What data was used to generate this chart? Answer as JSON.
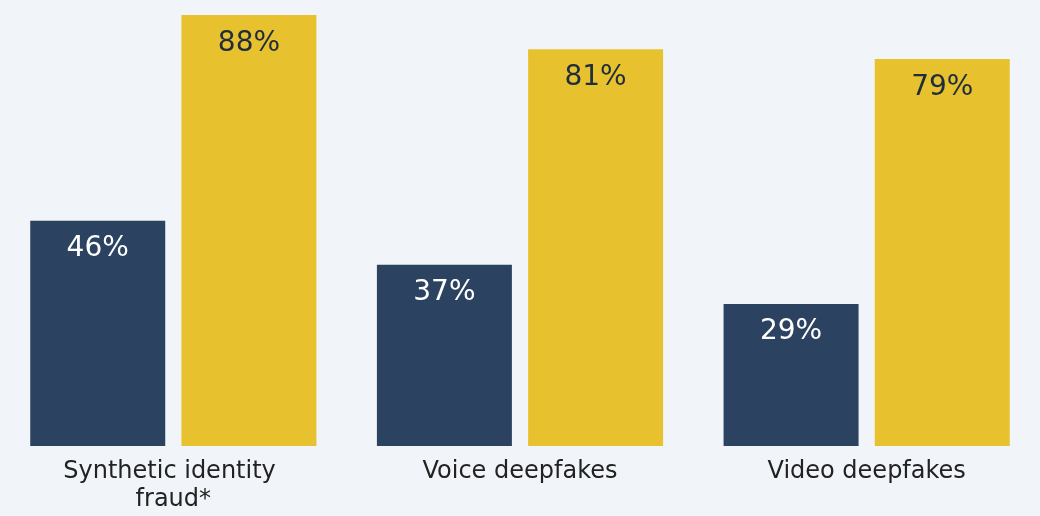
{
  "chart_data": {
    "type": "bar",
    "categories": [
      "Synthetic identity fraud*",
      "Voice deepfakes",
      "Video deepfakes"
    ],
    "series": [
      {
        "color": "#2b4360",
        "values": [
          46,
          37,
          29
        ],
        "value_labels": [
          "46%",
          "37%",
          "29%"
        ]
      },
      {
        "color": "#e8c22e",
        "values": [
          88,
          81,
          79
        ],
        "value_labels": [
          "88%",
          "81%",
          "79%"
        ]
      }
    ]
  }
}
